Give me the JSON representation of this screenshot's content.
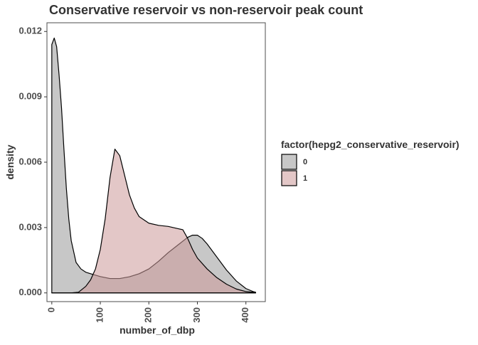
{
  "chart_data": {
    "type": "area",
    "title": "Conservative reservoir vs non-reservoir peak count",
    "xlabel": "number_of_dbp",
    "ylabel": "density",
    "xlim": [
      -10,
      440
    ],
    "ylim": [
      -0.0004,
      0.0124
    ],
    "x_ticks": [
      0,
      100,
      200,
      300,
      400
    ],
    "x_tick_labels": [
      "0",
      "100",
      "200",
      "300",
      "400"
    ],
    "y_ticks": [
      0.0,
      0.003,
      0.006,
      0.009,
      0.012
    ],
    "y_tick_labels": [
      "0.000",
      "0.003",
      "0.006",
      "0.009",
      "0.012"
    ],
    "grid": false,
    "legend": {
      "title": "factor(hepg2_conservative_reservoir)",
      "position": "right"
    },
    "series": [
      {
        "name": "0",
        "color": "#999999",
        "fill_opacity": 0.55,
        "x": [
          0,
          5,
          10,
          15,
          20,
          25,
          30,
          35,
          40,
          50,
          60,
          70,
          80,
          100,
          120,
          140,
          160,
          180,
          200,
          220,
          240,
          260,
          280,
          290,
          300,
          310,
          320,
          340,
          360,
          380,
          400,
          415,
          420
        ],
        "y": [
          0.0114,
          0.0117,
          0.0113,
          0.01,
          0.0085,
          0.0066,
          0.0048,
          0.0034,
          0.0024,
          0.0014,
          0.0011,
          0.00095,
          0.00088,
          0.00075,
          0.00066,
          0.00066,
          0.00074,
          0.00088,
          0.0011,
          0.00145,
          0.00185,
          0.0022,
          0.00255,
          0.00265,
          0.00265,
          0.0025,
          0.00225,
          0.00165,
          0.00105,
          0.00055,
          0.0002,
          6e-05,
          3e-05
        ]
      },
      {
        "name": "1",
        "color": "#cc9999",
        "fill_opacity": 0.55,
        "x": [
          0,
          40,
          55,
          60,
          70,
          80,
          90,
          100,
          110,
          120,
          130,
          140,
          150,
          160,
          170,
          180,
          200,
          220,
          240,
          260,
          270,
          280,
          290,
          300,
          320,
          340,
          360,
          380,
          400,
          415,
          420
        ],
        "y": [
          0.0,
          0.0,
          3e-05,
          0.00012,
          0.0003,
          0.0006,
          0.0011,
          0.002,
          0.0034,
          0.0053,
          0.0066,
          0.0063,
          0.0054,
          0.0045,
          0.0039,
          0.0035,
          0.0032,
          0.0031,
          0.00305,
          0.00295,
          0.0029,
          0.0025,
          0.002,
          0.0016,
          0.0011,
          0.0007,
          0.0004,
          0.00018,
          6e-05,
          3e-05,
          2e-05
        ]
      }
    ]
  }
}
